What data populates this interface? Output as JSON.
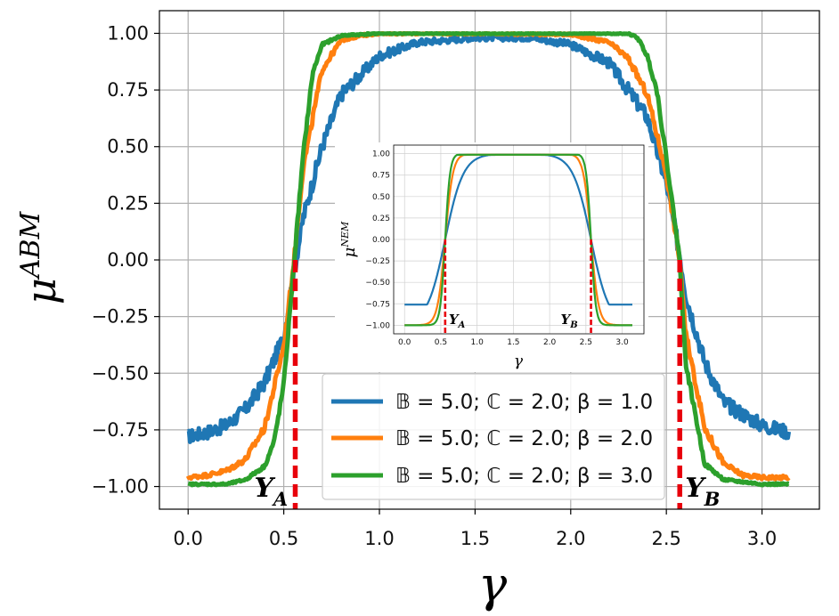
{
  "chart_data": [
    {
      "type": "line",
      "title": "",
      "xlabel": "γ",
      "ylabel": "μ^ABM",
      "xlim": [
        -0.15,
        3.3
      ],
      "ylim": [
        -1.1,
        1.1
      ],
      "xticks": [
        "0.0",
        "0.5",
        "1.0",
        "1.5",
        "2.0",
        "2.5",
        "3.0"
      ],
      "yticks": [
        "1.00",
        "0.75",
        "0.50",
        "0.25",
        "0.00",
        "−0.25",
        "−0.50",
        "−0.75",
        "−1.00"
      ],
      "grid": true,
      "legend_position": "lower-center",
      "series": [
        {
          "name": "𝔹 = 5.0; ℂ = 2.0; β = 1.0",
          "color": "#1f77b4",
          "x": [
            0.0,
            0.1,
            0.2,
            0.3,
            0.4,
            0.5,
            0.55,
            0.6,
            0.7,
            0.8,
            1.0,
            1.2,
            1.5,
            1.8,
            2.0,
            2.2,
            2.4,
            2.5,
            2.57,
            2.6,
            2.7,
            2.8,
            3.0,
            3.14
          ],
          "y": [
            -0.78,
            -0.76,
            -0.73,
            -0.66,
            -0.54,
            -0.34,
            -0.07,
            0.18,
            0.5,
            0.73,
            0.9,
            0.96,
            0.98,
            0.98,
            0.95,
            0.87,
            0.63,
            0.34,
            0.02,
            -0.15,
            -0.45,
            -0.63,
            -0.73,
            -0.76
          ]
        },
        {
          "name": "𝔹 = 5.0; ℂ = 2.0; β = 2.0",
          "color": "#ff7f0e",
          "x": [
            0.0,
            0.1,
            0.2,
            0.3,
            0.4,
            0.5,
            0.55,
            0.6,
            0.7,
            0.8,
            0.9,
            1.0,
            1.5,
            2.0,
            2.2,
            2.3,
            2.4,
            2.5,
            2.57,
            2.6,
            2.7,
            2.8,
            2.9,
            3.0,
            3.14
          ],
          "y": [
            -0.96,
            -0.95,
            -0.93,
            -0.88,
            -0.74,
            -0.38,
            -0.03,
            0.4,
            0.84,
            0.97,
            0.99,
            1.0,
            1.0,
            0.995,
            0.96,
            0.89,
            0.73,
            0.38,
            0.0,
            -0.32,
            -0.74,
            -0.9,
            -0.95,
            -0.96,
            -0.96
          ]
        },
        {
          "name": "𝔹 = 5.0; ℂ = 2.0; β = 3.0",
          "color": "#2ca02c",
          "x": [
            0.0,
            0.2,
            0.3,
            0.4,
            0.45,
            0.5,
            0.55,
            0.6,
            0.65,
            0.7,
            0.8,
            1.0,
            1.5,
            2.0,
            2.3,
            2.35,
            2.4,
            2.45,
            2.5,
            2.57,
            2.6,
            2.7,
            2.8,
            3.0,
            3.14
          ],
          "y": [
            -0.99,
            -0.99,
            -0.97,
            -0.91,
            -0.8,
            -0.55,
            -0.05,
            0.45,
            0.82,
            0.95,
            0.99,
            1.0,
            1.0,
            1.0,
            1.0,
            0.98,
            0.9,
            0.75,
            0.45,
            0.0,
            -0.45,
            -0.9,
            -0.97,
            -0.99,
            -0.99
          ]
        }
      ],
      "markers": [
        {
          "label_base": "Υ",
          "label_sub": "A",
          "x": 0.56
        },
        {
          "label_base": "Υ",
          "label_sub": "B",
          "x": 2.57
        }
      ]
    },
    {
      "type": "line",
      "title": "",
      "xlabel": "γ",
      "ylabel": "μ^NEM",
      "xlim": [
        -0.15,
        3.3
      ],
      "ylim": [
        -1.1,
        1.1
      ],
      "xticks": [
        "0.0",
        "0.5",
        "1.0",
        "1.5",
        "2.0",
        "2.5",
        "3.0"
      ],
      "yticks": [
        "1.00",
        "0.75",
        "0.50",
        "0.25",
        "0.00",
        "−0.25",
        "−0.50",
        "−0.75",
        "−1.00"
      ],
      "grid": true,
      "series": [
        {
          "color": "#1f77b4",
          "beta": 1.0,
          "x_range": [
            0.0,
            3.14
          ]
        },
        {
          "color": "#ff7f0e",
          "beta": 2.0,
          "x_range": [
            0.0,
            3.14
          ]
        },
        {
          "color": "#2ca02c",
          "beta": 3.0,
          "x_range": [
            0.0,
            3.14
          ]
        }
      ],
      "markers": [
        {
          "label_base": "Υ",
          "label_sub": "A",
          "x": 0.56
        },
        {
          "label_base": "Υ",
          "label_sub": "B",
          "x": 2.57
        }
      ]
    }
  ]
}
